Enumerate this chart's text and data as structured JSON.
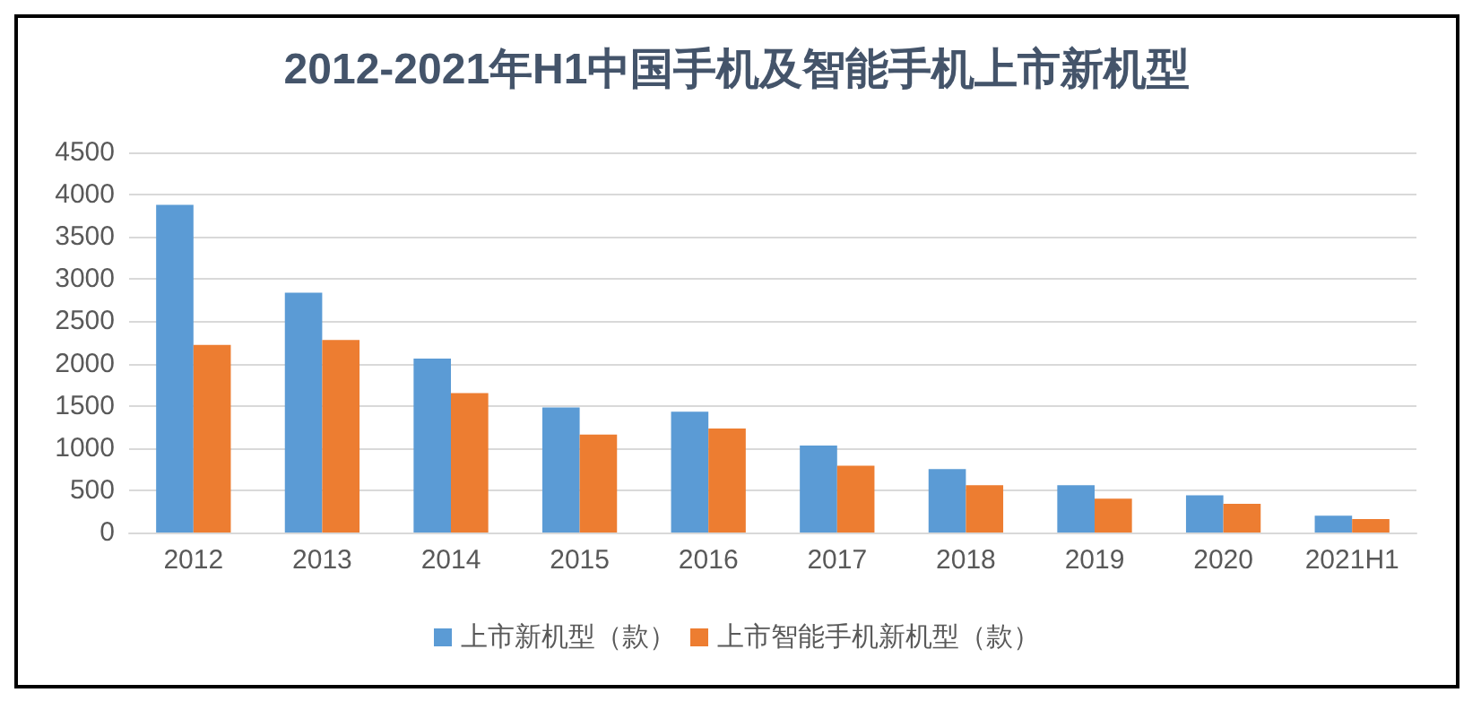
{
  "chart_data": {
    "type": "bar",
    "title": "2012-2021年H1中国手机及智能手机上市新机型",
    "categories": [
      "2012",
      "2013",
      "2014",
      "2015",
      "2016",
      "2017",
      "2018",
      "2019",
      "2020",
      "2021H1"
    ],
    "series": [
      {
        "name": "上市新机型（款）",
        "color": "#5b9bd5",
        "values": [
          3880,
          2840,
          2060,
          1480,
          1430,
          1030,
          750,
          560,
          440,
          200
        ]
      },
      {
        "name": "上市智能手机新机型（款）",
        "color": "#ed7d31",
        "values": [
          2220,
          2280,
          1650,
          1160,
          1230,
          790,
          560,
          400,
          340,
          160
        ]
      }
    ],
    "ylim": [
      0,
      4500
    ],
    "yticks": [
      0,
      500,
      1000,
      1500,
      2000,
      2500,
      3000,
      3500,
      4000,
      4500
    ],
    "grid": "y",
    "legend": "bottom"
  }
}
